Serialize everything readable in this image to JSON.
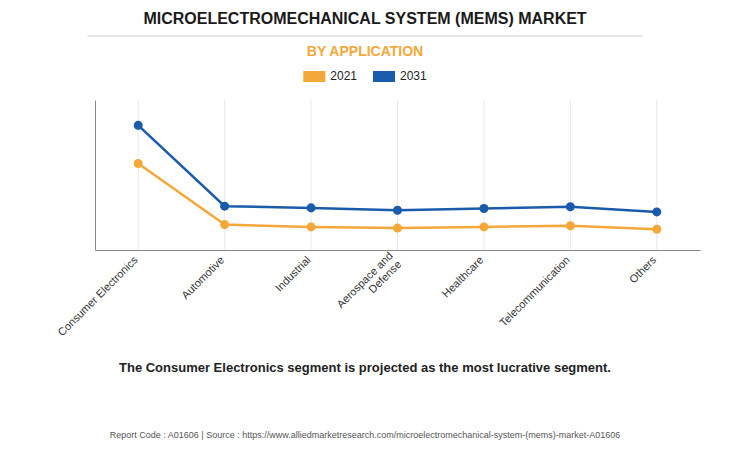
{
  "chart_data": {
    "type": "line",
    "title": "MICROELECTROMECHANICAL SYSTEM (MEMS) MARKET",
    "subtitle": "BY APPLICATION",
    "categories": [
      "Consumer Electronics",
      "Automotive",
      "Industrial",
      "Aerospace and\nDefense",
      "Healthcare",
      "Telecommunication",
      "Others"
    ],
    "series": [
      {
        "name": "2021",
        "color": "#F5A83A",
        "values": [
          7.5,
          2.2,
          2.0,
          1.9,
          2.0,
          2.1,
          1.8
        ]
      },
      {
        "name": "2031",
        "color": "#1A5BAB",
        "values": [
          10.8,
          3.8,
          3.65,
          3.45,
          3.6,
          3.75,
          3.3
        ]
      }
    ],
    "ylim": [
      0.0,
      13.0
    ],
    "tick_labels": "x",
    "grid": true,
    "marker": "circle",
    "annotations": [
      "The Consumer Electronics segment is projected as the most lucrative segment.",
      "Report Code : A01606  |  Source : https://www.alliedmarketresearch.com/microelectromechanical-system-(mems)-market-A01606"
    ]
  }
}
